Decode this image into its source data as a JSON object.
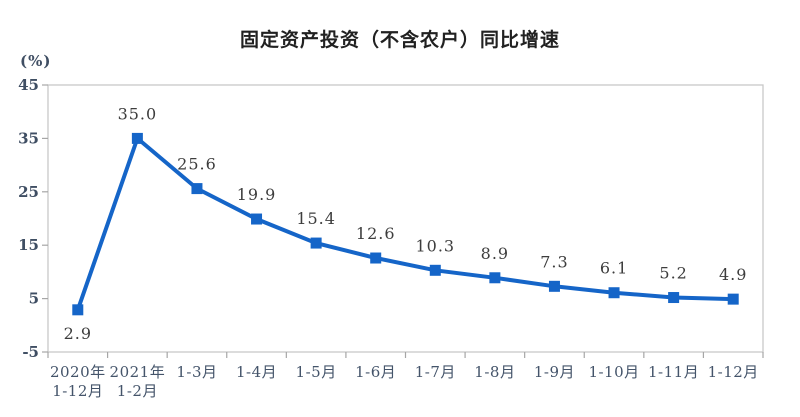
{
  "chart_data": {
    "type": "line",
    "title": "固定资产投资（不含农户）同比增速",
    "unit_label": "(%)",
    "categories": [
      [
        "2020年",
        "1-12月"
      ],
      [
        "2021年",
        "1-2月"
      ],
      [
        "1-3月"
      ],
      [
        "1-4月"
      ],
      [
        "1-5月"
      ],
      [
        "1-6月"
      ],
      [
        "1-7月"
      ],
      [
        "1-8月"
      ],
      [
        "1-9月"
      ],
      [
        "1-10月"
      ],
      [
        "1-11月"
      ],
      [
        "1-12月"
      ]
    ],
    "values": [
      2.9,
      35.0,
      25.6,
      19.9,
      15.4,
      12.6,
      10.3,
      8.9,
      7.3,
      6.1,
      5.2,
      4.9
    ],
    "point_labels": [
      "2.9",
      "35.0",
      "25.6",
      "19.9",
      "15.4",
      "12.6",
      "10.3",
      "8.9",
      "7.3",
      "6.1",
      "5.2",
      "4.9"
    ],
    "xlabel": "",
    "ylabel": "(%)",
    "ylim": [
      -5,
      45
    ],
    "yticks": [
      45,
      35,
      25,
      15,
      5,
      -5
    ],
    "grid": false,
    "legend": null,
    "marker": "square"
  },
  "colors": {
    "line": "#1565c8",
    "marker": "#1565c8",
    "plot_border": "#c8c8c8",
    "tick": "#a6a6a6",
    "axis_text": "#44546a",
    "data_label_text": "#3d3d3d",
    "title_text": "#212121",
    "background": "#ffffff"
  }
}
